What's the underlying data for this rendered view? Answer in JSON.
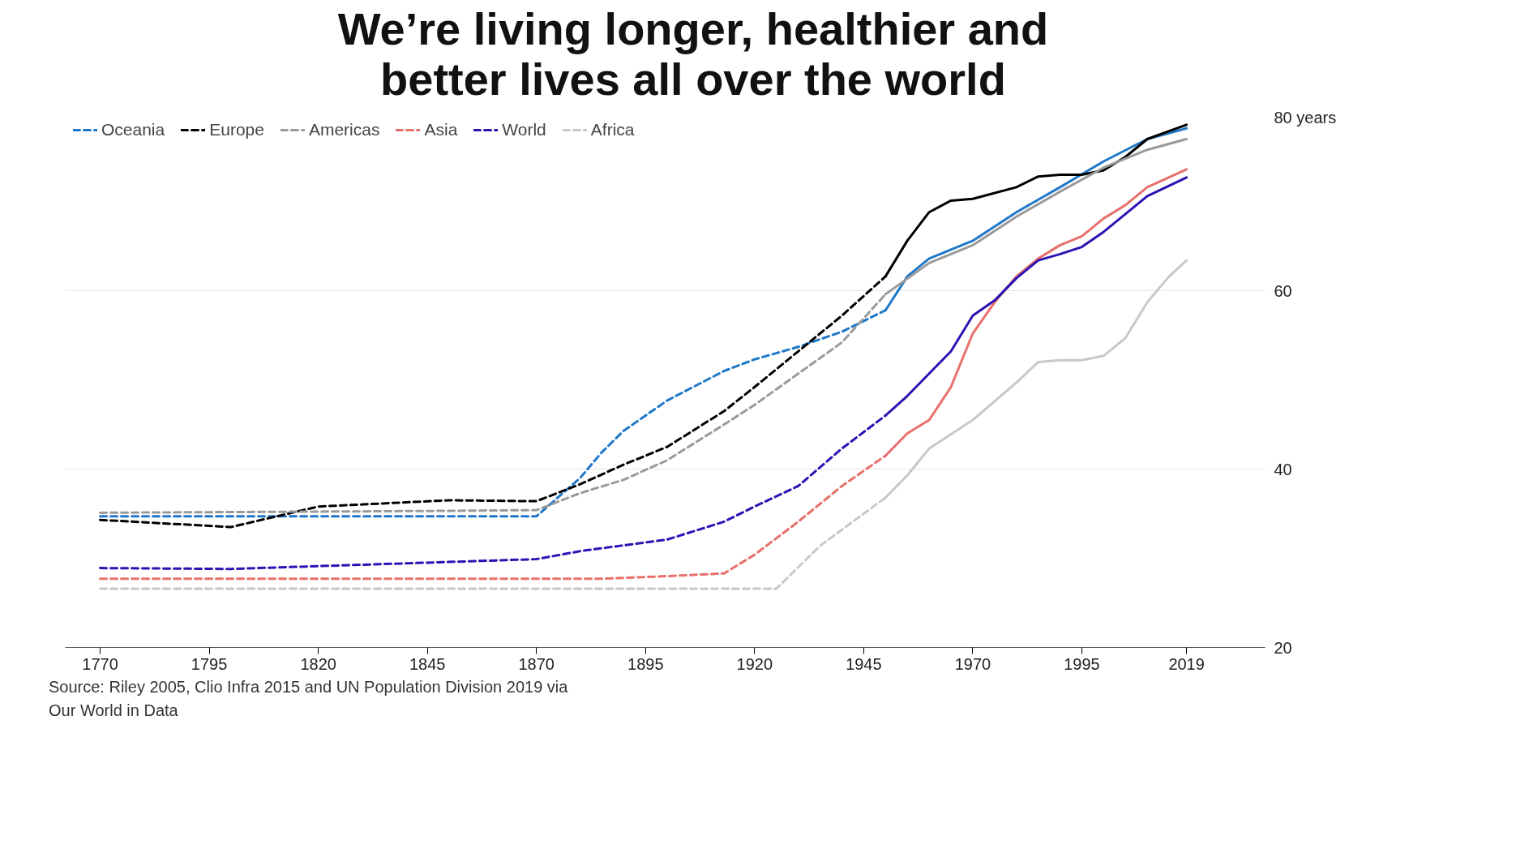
{
  "chart_data": {
    "type": "line",
    "title": "We’re living longer, healthier and\nbetter lives all over the world",
    "annotations": [
      "Source: Riley 2005, Clio Infra 2015 and UN Population Division 2019 via\nOur World in Data"
    ],
    "xlim": [
      1762,
      2037
    ],
    "xticks": [
      1770,
      1795,
      1820,
      1845,
      1870,
      1895,
      1920,
      1945,
      1970,
      1995,
      2019
    ],
    "ylim": [
      20,
      80
    ],
    "yticks": [
      20,
      40,
      60,
      {
        "value": 80,
        "label": "80 years"
      }
    ],
    "grid": "y",
    "legend": "top left",
    "series": [
      {
        "name": "Oceania",
        "color": "#1f78c8",
        "line_style": "dashed",
        "x": [
          1770,
          1870,
          1880,
          1885,
          1890,
          1900,
          1913,
          1920,
          1930,
          1940,
          1950
        ],
        "values": [
          34.7,
          34.7,
          39.0,
          41.9,
          44.3,
          47.7,
          51.0,
          52.3,
          53.7,
          55.4,
          57.8
        ]
      },
      {
        "color": "#1f78c8",
        "line_style": "solid",
        "x": [
          1950,
          1955,
          1960,
          1970,
          1980,
          1990,
          2000,
          2010,
          2019
        ],
        "values": [
          57.8,
          61.6,
          63.6,
          65.6,
          68.8,
          71.6,
          74.5,
          77.0,
          78.2
        ]
      },
      {
        "name": "Europe",
        "color": "#000000",
        "line_style": "dashed",
        "x": [
          1770,
          1800,
          1820,
          1850,
          1870,
          1880,
          1890,
          1900,
          1913,
          1920,
          1930,
          1940,
          1950
        ],
        "values": [
          34.3,
          33.5,
          35.8,
          36.5,
          36.4,
          38.3,
          40.5,
          42.5,
          46.5,
          49.2,
          53.2,
          57.2,
          61.6
        ]
      },
      {
        "color": "#000000",
        "line_style": "solid",
        "x": [
          1950,
          1955,
          1960,
          1965,
          1970,
          1980,
          1985,
          1990,
          1995,
          2000,
          2005,
          2010,
          2019
        ],
        "values": [
          61.6,
          65.6,
          68.8,
          70.1,
          70.3,
          71.6,
          72.8,
          73.0,
          73.0,
          73.5,
          75.0,
          77.0,
          78.6
        ]
      },
      {
        "name": "Americas",
        "color": "#9a9a9a",
        "line_style": "dashed",
        "x": [
          1770,
          1845,
          1870,
          1880,
          1890,
          1900,
          1913,
          1920,
          1930,
          1940,
          1950
        ],
        "values": [
          35.1,
          35.3,
          35.4,
          37.3,
          38.8,
          41.0,
          45.0,
          47.2,
          50.7,
          54.2,
          59.6
        ]
      },
      {
        "color": "#9a9a9a",
        "line_style": "solid",
        "x": [
          1950,
          1960,
          1970,
          1980,
          1990,
          2000,
          2010,
          2019
        ],
        "values": [
          59.6,
          63.1,
          65.1,
          68.3,
          71.1,
          73.8,
          75.8,
          77.0
        ]
      },
      {
        "name": "Asia",
        "color": "#e8706a",
        "line_style": "dashed",
        "x": [
          1770,
          1885,
          1900,
          1913,
          1920,
          1930,
          1940,
          1950
        ],
        "values": [
          27.7,
          27.7,
          28.0,
          28.3,
          30.4,
          34.1,
          38.1,
          41.5
        ]
      },
      {
        "color": "#e8706a",
        "line_style": "solid",
        "x": [
          1950,
          1955,
          1960,
          1965,
          1970,
          1975,
          1980,
          1985,
          1990,
          1995,
          2000,
          2005,
          2010,
          2019
        ],
        "values": [
          41.5,
          44.0,
          45.5,
          49.2,
          55.2,
          58.7,
          61.6,
          63.6,
          65.1,
          66.1,
          68.1,
          69.6,
          71.6,
          73.6
        ]
      },
      {
        "name": "World",
        "color": "#2a14b4",
        "line_style": "dashed",
        "x": [
          1770,
          1800,
          1870,
          1880,
          1900,
          1913,
          1920,
          1930,
          1940,
          1950
        ],
        "values": [
          28.9,
          28.8,
          29.9,
          30.8,
          32.1,
          34.1,
          35.8,
          38.1,
          42.3,
          46.0
        ]
      },
      {
        "color": "#2a14b4",
        "line_style": "solid",
        "x": [
          1950,
          1955,
          1960,
          1965,
          1970,
          1975,
          1980,
          1985,
          1990,
          1995,
          2000,
          2005,
          2010,
          2019
        ],
        "values": [
          46.0,
          48.2,
          50.7,
          53.2,
          57.2,
          58.9,
          61.4,
          63.4,
          64.1,
          64.9,
          66.6,
          68.6,
          70.6,
          72.7
        ]
      },
      {
        "name": "Africa",
        "color": "#c8c8c8",
        "line_style": "dashed",
        "x": [
          1770,
          1925,
          1935,
          1950
        ],
        "values": [
          26.6,
          26.6,
          31.4,
          36.8
        ]
      },
      {
        "color": "#c8c8c8",
        "line_style": "solid",
        "x": [
          1950,
          1955,
          1960,
          1970,
          1980,
          1985,
          1990,
          1995,
          2000,
          2005,
          2010,
          2015,
          2019
        ],
        "values": [
          36.8,
          39.3,
          42.3,
          45.5,
          49.7,
          52.0,
          52.2,
          52.2,
          52.7,
          54.7,
          58.7,
          61.6,
          63.4
        ]
      }
    ]
  }
}
